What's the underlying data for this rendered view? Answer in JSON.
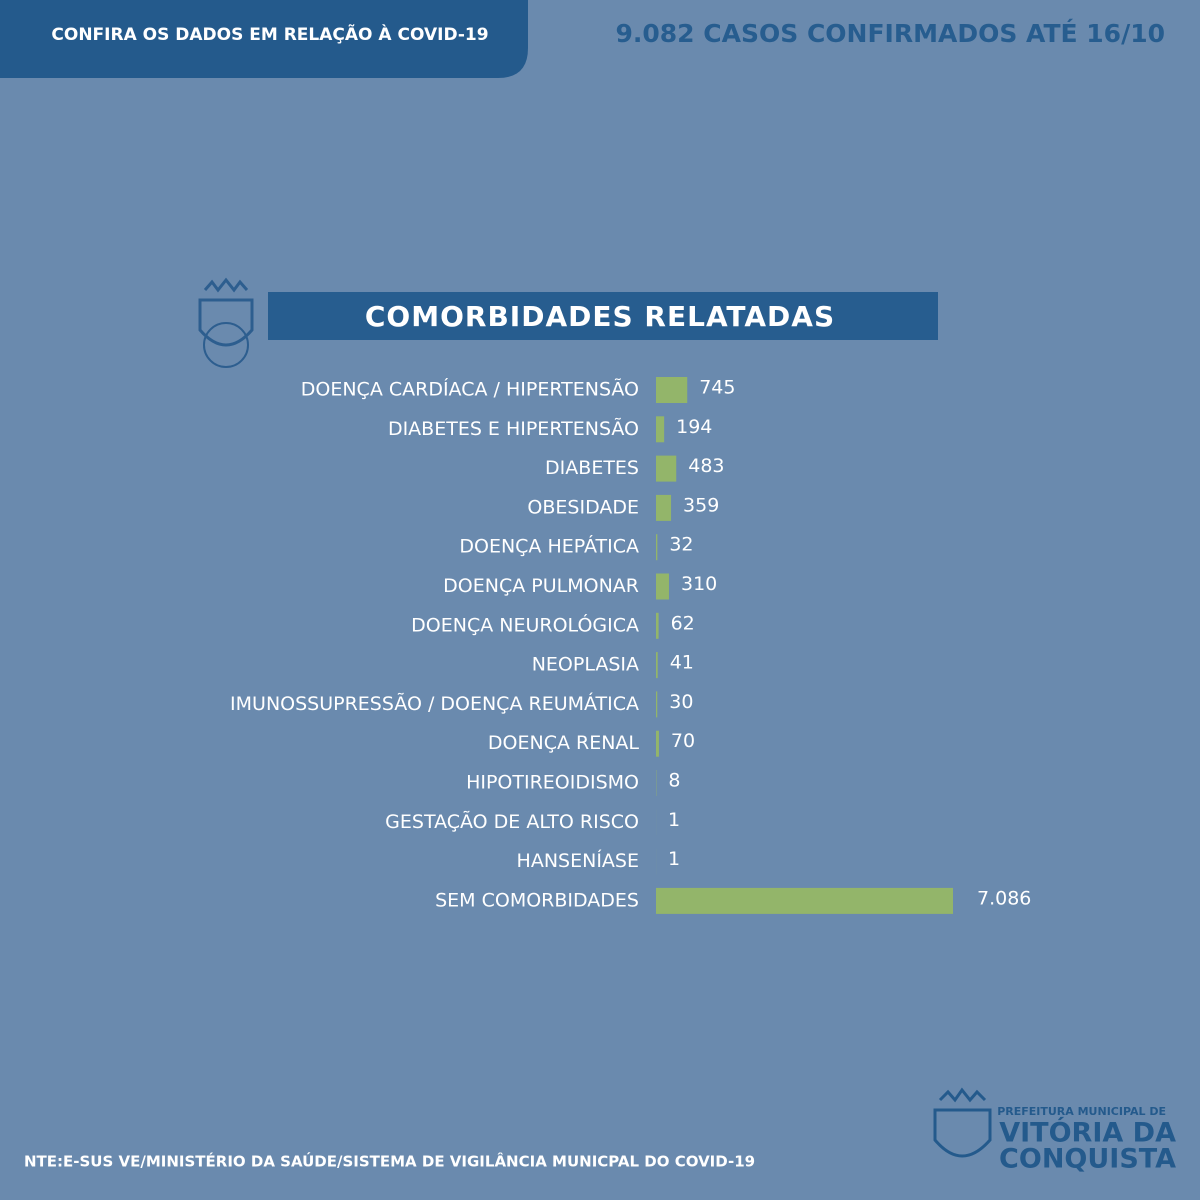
{
  "header": {
    "badge": "CONFIRA OS DADOS EM RELAÇÃO À COVID-19",
    "headline": "9.082 CASOS CONFIRMADOS ATÉ 16/10"
  },
  "chart_data": {
    "type": "bar",
    "orientation": "horizontal",
    "title": "COMORBIDADES RELATADAS",
    "categories": [
      "DOENÇA CARDÍACA / HIPERTENSÃO",
      "DIABETES E HIPERTENSÃO",
      "DIABETES",
      "OBESIDADE",
      "DOENÇA HEPÁTICA",
      "DOENÇA PULMONAR",
      "DOENÇA NEUROLÓGICA",
      "NEOPLASIA",
      "IMUNOSSUPRESSÃO / DOENÇA REUMÁTICA",
      "DOENÇA RENAL",
      "HIPOTIREOIDISMO",
      "GESTAÇÃO DE ALTO RISCO",
      "HANSENÍASE",
      "SEM COMORBIDADES"
    ],
    "values": [
      745,
      194,
      483,
      359,
      32,
      310,
      62,
      41,
      30,
      70,
      8,
      1,
      1,
      7086
    ],
    "value_labels": [
      "745",
      "194",
      "483",
      "359",
      "32",
      "310",
      "62",
      "41",
      "30",
      "70",
      "8",
      "1",
      "1",
      "7.086"
    ],
    "color": "#93b56a"
  },
  "footer": {
    "source": "NTE:E-SUS VE/MINISTÉRIO DA SAÚDE/SISTEMA DE VIGILÂNCIA MUNICPAL DO COVID-19",
    "logo_top": "PREFEITURA MUNICIPAL DE",
    "logo_line1": "VITÓRIA DA",
    "logo_line2": "CONQUISTA"
  }
}
